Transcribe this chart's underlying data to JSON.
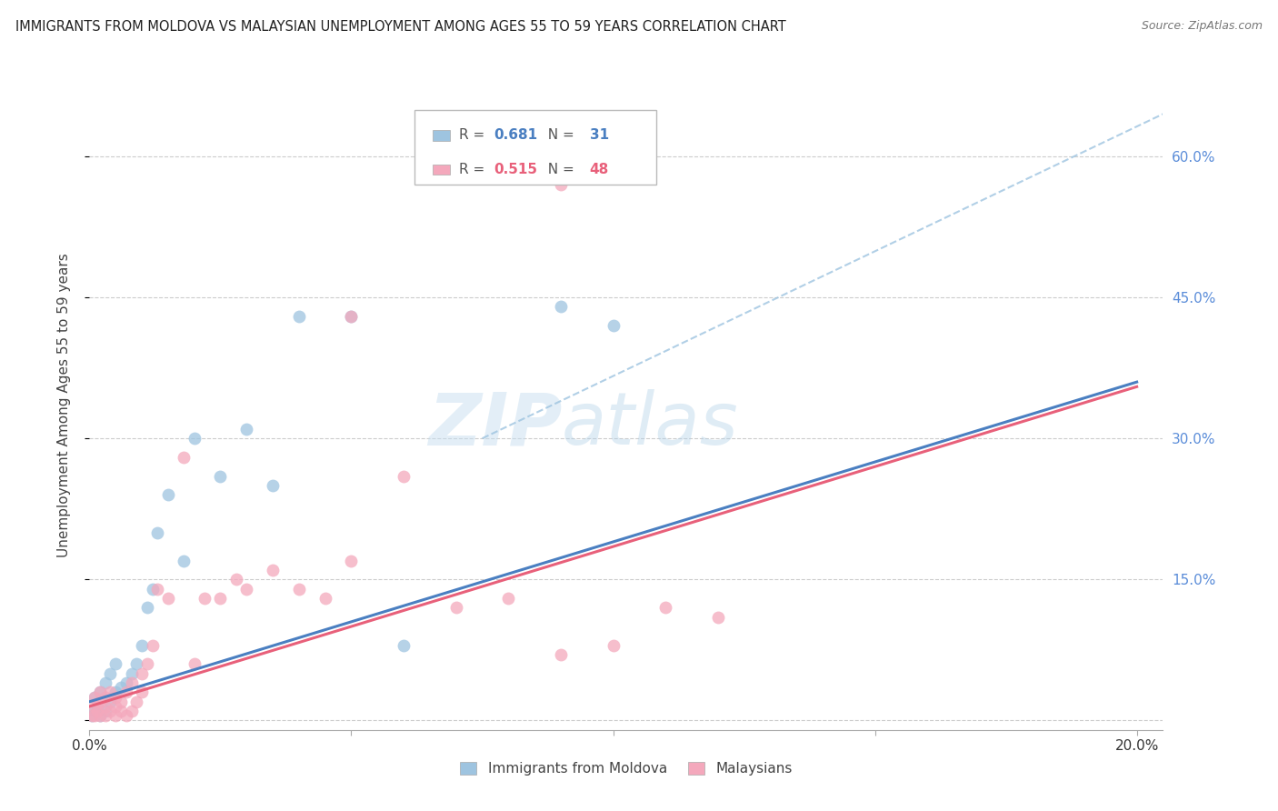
{
  "title": "IMMIGRANTS FROM MOLDOVA VS MALAYSIAN UNEMPLOYMENT AMONG AGES 55 TO 59 YEARS CORRELATION CHART",
  "source": "Source: ZipAtlas.com",
  "ylabel": "Unemployment Among Ages 55 to 59 years",
  "legend_labels": [
    "Immigrants from Moldova",
    "Malaysians"
  ],
  "blue_R": 0.681,
  "blue_N": 31,
  "pink_R": 0.515,
  "pink_N": 48,
  "blue_color": "#9ec4e0",
  "pink_color": "#f4a8bc",
  "blue_line_color": "#4a7fc1",
  "pink_line_color": "#e8607a",
  "right_axis_color": "#5b8dd9",
  "right_yticks": [
    0.0,
    0.15,
    0.3,
    0.45,
    0.6
  ],
  "right_yticklabels": [
    "",
    "15.0%",
    "30.0%",
    "45.0%",
    "60.0%"
  ],
  "xlim": [
    0.0,
    0.205
  ],
  "ylim": [
    -0.01,
    0.68
  ],
  "xticks": [
    0.0,
    0.05,
    0.1,
    0.15,
    0.2
  ],
  "xticklabels": [
    "0.0%",
    "",
    "",
    "",
    "20.0%"
  ],
  "blue_scatter_x": [
    0.0005,
    0.001,
    0.001,
    0.0015,
    0.002,
    0.002,
    0.003,
    0.003,
    0.004,
    0.004,
    0.005,
    0.005,
    0.006,
    0.007,
    0.008,
    0.009,
    0.01,
    0.011,
    0.012,
    0.013,
    0.015,
    0.018,
    0.02,
    0.025,
    0.03,
    0.035,
    0.04,
    0.05,
    0.06,
    0.09,
    0.1
  ],
  "blue_scatter_y": [
    0.005,
    0.01,
    0.025,
    0.015,
    0.005,
    0.03,
    0.01,
    0.04,
    0.02,
    0.05,
    0.03,
    0.06,
    0.035,
    0.04,
    0.05,
    0.06,
    0.08,
    0.12,
    0.14,
    0.2,
    0.24,
    0.17,
    0.3,
    0.26,
    0.31,
    0.25,
    0.43,
    0.43,
    0.08,
    0.44,
    0.42
  ],
  "pink_scatter_x": [
    0.0005,
    0.001,
    0.001,
    0.001,
    0.0015,
    0.002,
    0.002,
    0.002,
    0.003,
    0.003,
    0.003,
    0.004,
    0.004,
    0.005,
    0.005,
    0.005,
    0.006,
    0.006,
    0.007,
    0.007,
    0.008,
    0.008,
    0.009,
    0.01,
    0.01,
    0.011,
    0.012,
    0.013,
    0.015,
    0.018,
    0.02,
    0.022,
    0.025,
    0.028,
    0.03,
    0.035,
    0.04,
    0.045,
    0.05,
    0.06,
    0.07,
    0.08,
    0.09,
    0.1,
    0.11,
    0.12,
    0.05,
    0.09
  ],
  "pink_scatter_y": [
    0.005,
    0.005,
    0.015,
    0.025,
    0.01,
    0.005,
    0.02,
    0.03,
    0.005,
    0.015,
    0.025,
    0.01,
    0.03,
    0.005,
    0.015,
    0.025,
    0.01,
    0.02,
    0.005,
    0.03,
    0.01,
    0.04,
    0.02,
    0.05,
    0.03,
    0.06,
    0.08,
    0.14,
    0.13,
    0.28,
    0.06,
    0.13,
    0.13,
    0.15,
    0.14,
    0.16,
    0.14,
    0.13,
    0.17,
    0.26,
    0.12,
    0.13,
    0.57,
    0.08,
    0.12,
    0.11,
    0.43,
    0.07
  ],
  "blue_line_x": [
    0.0,
    0.2
  ],
  "blue_line_y": [
    0.02,
    0.36
  ],
  "pink_line_x": [
    0.0,
    0.2
  ],
  "pink_line_y": [
    0.015,
    0.355
  ],
  "dashed_line_x": [
    0.075,
    0.205
  ],
  "dashed_line_y": [
    0.3,
    0.645
  ],
  "watermark_zip": "ZIP",
  "watermark_atlas": "atlas",
  "background_color": "#ffffff",
  "grid_color": "#cccccc",
  "grid_yticks": [
    0.0,
    0.15,
    0.3,
    0.45,
    0.6
  ]
}
